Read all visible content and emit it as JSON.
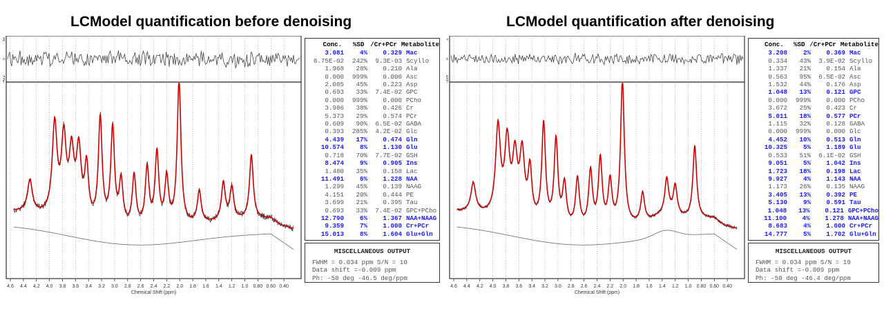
{
  "colors": {
    "fit": "#cc0000",
    "data": "#444444",
    "baseline": "#777777",
    "highlight": "#1a1aff",
    "grid": "#999999"
  },
  "chart_data": [
    {
      "type": "line",
      "title": "LCModel quantification before denoising",
      "xlabel": "Chemical Shift (ppm)",
      "xlim": [
        4.6,
        0.2
      ],
      "x_ticks": [
        "4.6",
        "4.4",
        "4.2",
        "4.0",
        "3.8",
        "3.6",
        "3.4",
        "3.2",
        "3.0",
        "2.8",
        "2.6",
        "2.4",
        "2.2",
        "2.0",
        "1.8",
        "1.6",
        "1.4",
        "1.2",
        "1.0",
        "0.80",
        "0.60",
        "0.40"
      ],
      "residual_axis": {
        "top": "52",
        "mid": "0",
        "bottom": "-422"
      },
      "peaks": [
        {
          "ppm": 4.3,
          "height": 0.22
        },
        {
          "ppm": 3.92,
          "height": 0.62
        },
        {
          "ppm": 3.78,
          "height": 0.52
        },
        {
          "ppm": 3.66,
          "height": 0.42
        },
        {
          "ppm": 3.55,
          "height": 0.46
        },
        {
          "ppm": 3.43,
          "height": 0.36
        },
        {
          "ppm": 3.22,
          "height": 0.72
        },
        {
          "ppm": 3.03,
          "height": 0.66
        },
        {
          "ppm": 2.9,
          "height": 0.3
        },
        {
          "ppm": 2.7,
          "height": 0.35
        },
        {
          "ppm": 2.5,
          "height": 0.4
        },
        {
          "ppm": 2.35,
          "height": 0.5
        },
        {
          "ppm": 2.2,
          "height": 0.32
        },
        {
          "ppm": 2.01,
          "height": 1.0
        },
        {
          "ppm": 1.7,
          "height": 0.22
        },
        {
          "ppm": 1.33,
          "height": 0.26
        },
        {
          "ppm": 1.2,
          "height": 0.22
        },
        {
          "ppm": 0.9,
          "height": 0.44
        }
      ],
      "table": {
        "headers": [
          "Conc.",
          "%SD",
          "/Cr+PCr",
          "Metabolite"
        ],
        "rows": [
          {
            "conc": "3.081",
            "sd": "4%",
            "ratio": "0.329",
            "name": "Mac",
            "hi": true
          },
          {
            "conc": "8.75E-02",
            "sd": "242%",
            "ratio": "9.3E-03",
            "name": "Scyllo",
            "hi": false
          },
          {
            "conc": "1.968",
            "sd": "28%",
            "ratio": "0.210",
            "name": "Ala",
            "hi": false
          },
          {
            "conc": "0.000",
            "sd": "999%",
            "ratio": "0.000",
            "name": "Asc",
            "hi": false
          },
          {
            "conc": "2.085",
            "sd": "45%",
            "ratio": "0.223",
            "name": "Asp",
            "hi": false
          },
          {
            "conc": "0.693",
            "sd": "33%",
            "ratio": "7.4E-02",
            "name": "GPC",
            "hi": false
          },
          {
            "conc": "0.000",
            "sd": "999%",
            "ratio": "0.000",
            "name": "PCho",
            "hi": false
          },
          {
            "conc": "3.986",
            "sd": "38%",
            "ratio": "0.426",
            "name": "Cr",
            "hi": false
          },
          {
            "conc": "5.373",
            "sd": "29%",
            "ratio": "0.574",
            "name": "PCr",
            "hi": false
          },
          {
            "conc": "0.609",
            "sd": "90%",
            "ratio": "6.5E-02",
            "name": "GABA",
            "hi": false
          },
          {
            "conc": "0.393",
            "sd": "285%",
            "ratio": "4.2E-02",
            "name": "Glc",
            "hi": false
          },
          {
            "conc": "4.439",
            "sd": "17%",
            "ratio": "0.474",
            "name": "Gln",
            "hi": true
          },
          {
            "conc": "10.574",
            "sd": "8%",
            "ratio": "1.130",
            "name": "Glu",
            "hi": true
          },
          {
            "conc": "0.718",
            "sd": "70%",
            "ratio": "7.7E-02",
            "name": "GSH",
            "hi": false
          },
          {
            "conc": "8.474",
            "sd": "9%",
            "ratio": "0.905",
            "name": "Ins",
            "hi": true
          },
          {
            "conc": "1.480",
            "sd": "35%",
            "ratio": "0.158",
            "name": "Lac",
            "hi": false
          },
          {
            "conc": "11.491",
            "sd": "6%",
            "ratio": "1.228",
            "name": "NAA",
            "hi": true
          },
          {
            "conc": "1.299",
            "sd": "45%",
            "ratio": "0.139",
            "name": "NAAG",
            "hi": false
          },
          {
            "conc": "4.151",
            "sd": "20%",
            "ratio": "0.444",
            "name": "PE",
            "hi": false
          },
          {
            "conc": "3.699",
            "sd": "21%",
            "ratio": "0.395",
            "name": "Tau",
            "hi": false
          },
          {
            "conc": "0.693",
            "sd": "33%",
            "ratio": "7.4E-02",
            "name": "GPC+PCho",
            "hi": false
          },
          {
            "conc": "12.790",
            "sd": "6%",
            "ratio": "1.367",
            "name": "NAA+NAAG",
            "hi": true
          },
          {
            "conc": "9.359",
            "sd": "7%",
            "ratio": "1.000",
            "name": "Cr+PCr",
            "hi": true
          },
          {
            "conc": "15.013",
            "sd": "8%",
            "ratio": "1.604",
            "name": "Glu+Gln",
            "hi": true
          }
        ]
      },
      "misc": {
        "title": "MISCELLANEOUS OUTPUT",
        "line1": "FWHM = 0.034 ppm   S/N =  10",
        "line2": "Data shift =-0.009 ppm",
        "line3": "Ph: -50 deg      -46.5 deg/ppm"
      }
    },
    {
      "type": "line",
      "title": "LCModel quantification after denoising",
      "xlabel": "Chemical Shift (ppm)",
      "xlim": [
        4.6,
        0.2
      ],
      "x_ticks": [
        "4.6",
        "4.4",
        "4.2",
        "4.0",
        "3.8",
        "3.6",
        "3.4",
        "3.2",
        "3.0",
        "2.8",
        "2.6",
        "2.4",
        "2.2",
        "2.0",
        "1.8",
        "1.6",
        "1.4",
        "1.2",
        "1.0",
        "0.80",
        "0.60",
        "0.40"
      ],
      "residual_axis": {
        "top": "2",
        "mid": "0",
        "bottom": "-395"
      },
      "peaks": [
        {
          "ppm": 4.3,
          "height": 0.2
        },
        {
          "ppm": 3.92,
          "height": 0.6
        },
        {
          "ppm": 3.78,
          "height": 0.5
        },
        {
          "ppm": 3.66,
          "height": 0.4
        },
        {
          "ppm": 3.55,
          "height": 0.44
        },
        {
          "ppm": 3.43,
          "height": 0.34
        },
        {
          "ppm": 3.22,
          "height": 0.68
        },
        {
          "ppm": 3.03,
          "height": 0.58
        },
        {
          "ppm": 2.9,
          "height": 0.28
        },
        {
          "ppm": 2.7,
          "height": 0.33
        },
        {
          "ppm": 2.5,
          "height": 0.38
        },
        {
          "ppm": 2.35,
          "height": 0.46
        },
        {
          "ppm": 2.2,
          "height": 0.3
        },
        {
          "ppm": 2.01,
          "height": 1.0
        },
        {
          "ppm": 1.7,
          "height": 0.2
        },
        {
          "ppm": 1.33,
          "height": 0.24
        },
        {
          "ppm": 1.2,
          "height": 0.2
        },
        {
          "ppm": 0.9,
          "height": 0.5
        }
      ],
      "table": {
        "headers": [
          "Conc.",
          "%SD",
          "/Cr+PCr",
          "Metabolite"
        ],
        "rows": [
          {
            "conc": "3.208",
            "sd": "2%",
            "ratio": "0.369",
            "name": "Mac",
            "hi": true
          },
          {
            "conc": "0.334",
            "sd": "43%",
            "ratio": "3.9E-02",
            "name": "Scyllo",
            "hi": false
          },
          {
            "conc": "1.337",
            "sd": "21%",
            "ratio": "0.154",
            "name": "Ala",
            "hi": false
          },
          {
            "conc": "0.563",
            "sd": "95%",
            "ratio": "6.5E-02",
            "name": "Asc",
            "hi": false
          },
          {
            "conc": "1.532",
            "sd": "44%",
            "ratio": "0.176",
            "name": "Asp",
            "hi": false
          },
          {
            "conc": "1.048",
            "sd": "13%",
            "ratio": "0.121",
            "name": "GPC",
            "hi": true
          },
          {
            "conc": "0.000",
            "sd": "999%",
            "ratio": "0.000",
            "name": "PCho",
            "hi": false
          },
          {
            "conc": "3.672",
            "sd": "25%",
            "ratio": "0.423",
            "name": "Cr",
            "hi": false
          },
          {
            "conc": "5.011",
            "sd": "18%",
            "ratio": "0.577",
            "name": "PCr",
            "hi": true
          },
          {
            "conc": "1.115",
            "sd": "32%",
            "ratio": "0.128",
            "name": "GABA",
            "hi": false
          },
          {
            "conc": "0.000",
            "sd": "999%",
            "ratio": "0.000",
            "name": "Glc",
            "hi": false
          },
          {
            "conc": "4.452",
            "sd": "10%",
            "ratio": "0.513",
            "name": "Gln",
            "hi": true
          },
          {
            "conc": "10.325",
            "sd": "5%",
            "ratio": "1.189",
            "name": "Glu",
            "hi": true
          },
          {
            "conc": "0.533",
            "sd": "51%",
            "ratio": "6.1E-02",
            "name": "GSH",
            "hi": false
          },
          {
            "conc": "9.051",
            "sd": "5%",
            "ratio": "1.042",
            "name": "Ins",
            "hi": true
          },
          {
            "conc": "1.723",
            "sd": "18%",
            "ratio": "0.198",
            "name": "Lac",
            "hi": true
          },
          {
            "conc": "9.927",
            "sd": "4%",
            "ratio": "1.143",
            "name": "NAA",
            "hi": true
          },
          {
            "conc": "1.173",
            "sd": "26%",
            "ratio": "0.135",
            "name": "NAAG",
            "hi": false
          },
          {
            "conc": "3.405",
            "sd": "13%",
            "ratio": "0.392",
            "name": "PE",
            "hi": true
          },
          {
            "conc": "5.130",
            "sd": "9%",
            "ratio": "0.591",
            "name": "Tau",
            "hi": true
          },
          {
            "conc": "1.048",
            "sd": "13%",
            "ratio": "0.121",
            "name": "GPC+PCho",
            "hi": true
          },
          {
            "conc": "11.100",
            "sd": "4%",
            "ratio": "1.278",
            "name": "NAA+NAAG",
            "hi": true
          },
          {
            "conc": "8.683",
            "sd": "4%",
            "ratio": "1.000",
            "name": "Cr+PCr",
            "hi": true
          },
          {
            "conc": "14.777",
            "sd": "5%",
            "ratio": "1.702",
            "name": "Glu+Gln",
            "hi": true
          }
        ]
      },
      "misc": {
        "title": "MISCELLANEOUS OUTPUT",
        "line1": "FWHM = 0.034 ppm   S/N =  19",
        "line2": "Data shift =-0.009 ppm",
        "line3": "Ph: -50 deg      -46.4 deg/ppm"
      }
    }
  ]
}
